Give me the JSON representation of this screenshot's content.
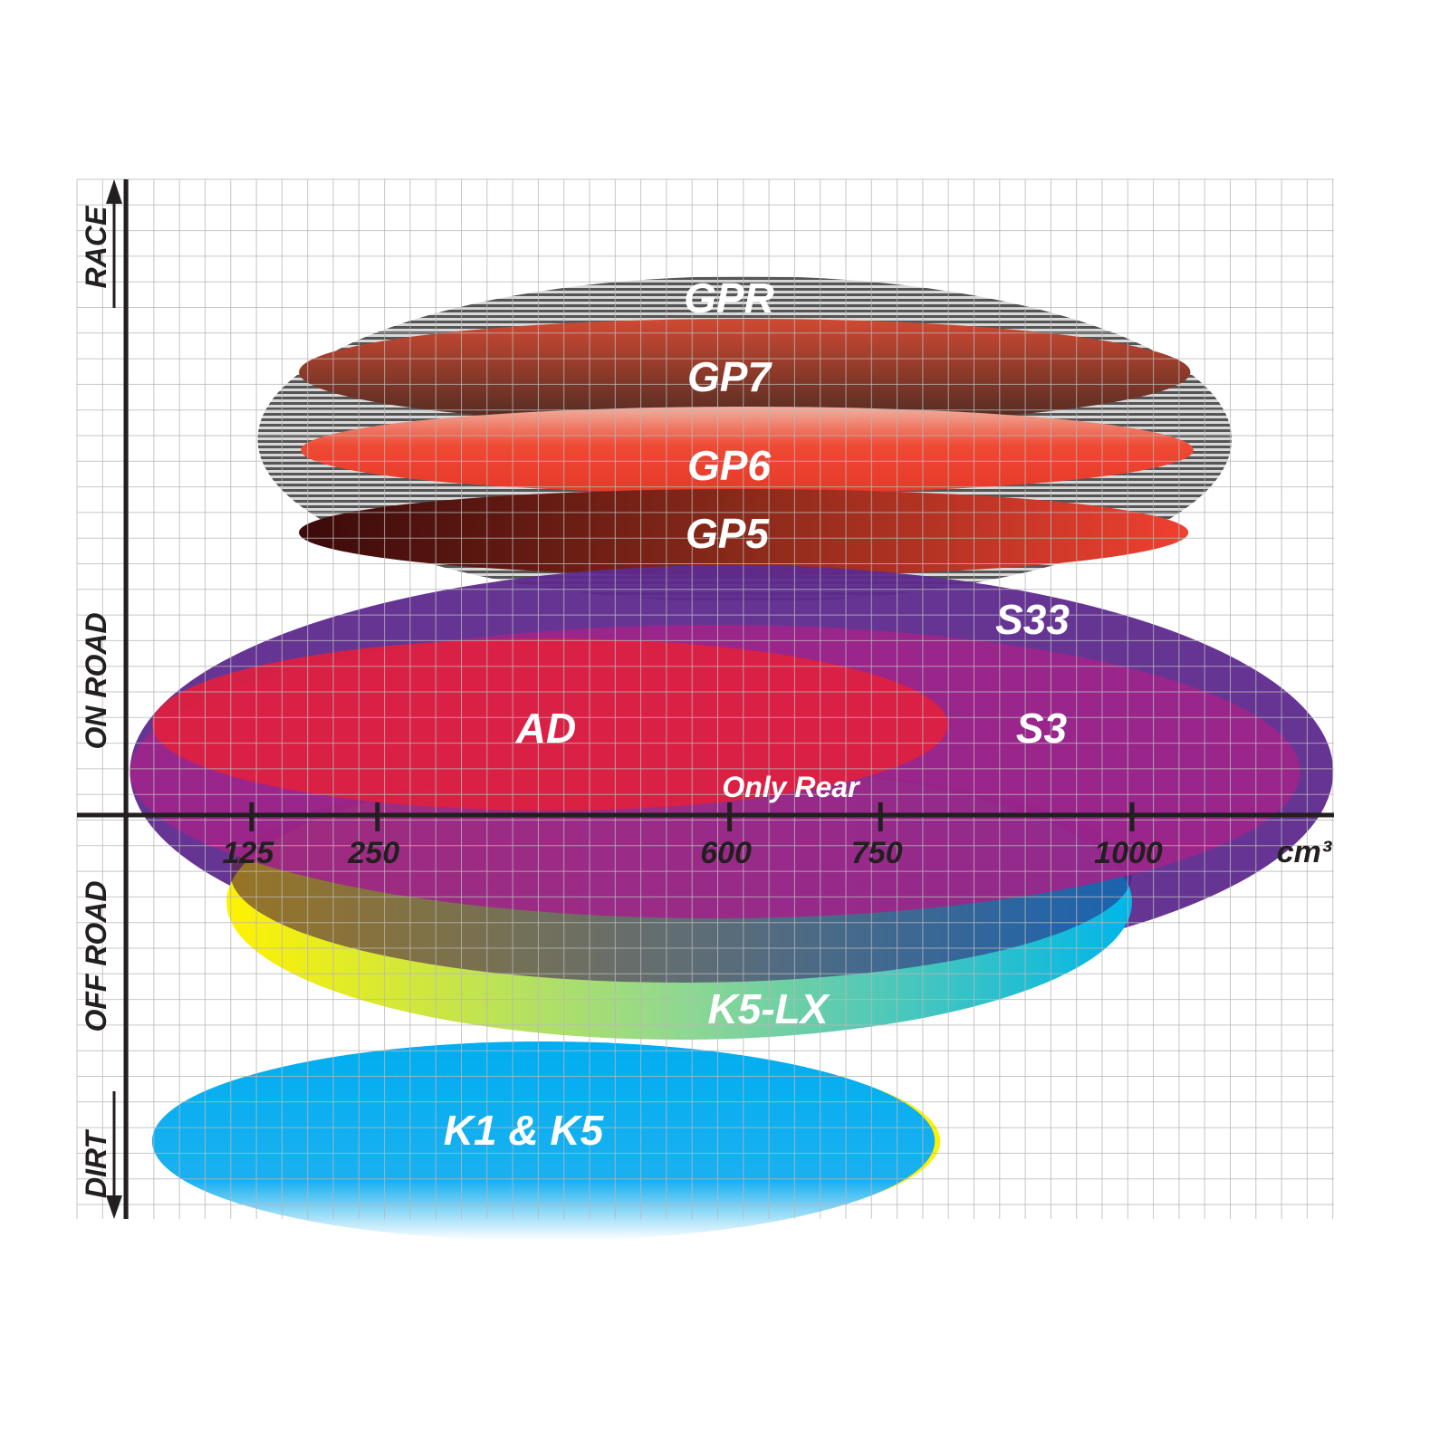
{
  "chart_data": {
    "type": "positioning-ellipses",
    "x_unit": "cm³",
    "x_ticks": [
      125,
      250,
      600,
      750,
      1000
    ],
    "x_tick_labels": [
      "125",
      "250",
      "600",
      "750",
      "1000"
    ],
    "y_categories": [
      "RACE",
      "ON ROAD",
      "OFF ROAD",
      "DIRT"
    ],
    "grid": true,
    "products": [
      {
        "name": "GPR",
        "cc_range": [
          131,
          1099
        ],
        "use": "RACE",
        "color": "#9a9a9a"
      },
      {
        "name": "GP7",
        "cc_range": [
          172,
          1058
        ],
        "use": "RACE",
        "color": "#8b3a28"
      },
      {
        "name": "GP6",
        "cc_range": [
          174,
          1061
        ],
        "use": "RACE",
        "color": "#e8402e"
      },
      {
        "name": "GP5",
        "cc_range": [
          172,
          1056
        ],
        "use": "RACE",
        "color": "#a8231c"
      },
      {
        "name": "S33",
        "cc_range": [
          4,
          1200
        ],
        "use": "ON ROAD",
        "color": "#5e2a8e"
      },
      {
        "name": "S3",
        "cc_range": [
          4,
          1167
        ],
        "use": "ON ROAD",
        "color": "#a0248a"
      },
      {
        "name": "AD",
        "cc_range": [
          26,
          817
        ],
        "use": "ON ROAD",
        "color": "#e0203e"
      },
      {
        "name": "Only Rear",
        "cc_range": [
          104,
          1000
        ],
        "use": "ON ROAD / OFF ROAD",
        "color": "#7a2a5a"
      },
      {
        "name": "K5-LX",
        "cc_range": [
          100,
          1000
        ],
        "use": "OFF ROAD",
        "color": "#1fb8e0"
      },
      {
        "name": "K1 & K5",
        "cc_range": [
          26,
          804
        ],
        "use": "DIRT",
        "color": "#00aeef"
      }
    ]
  }
}
